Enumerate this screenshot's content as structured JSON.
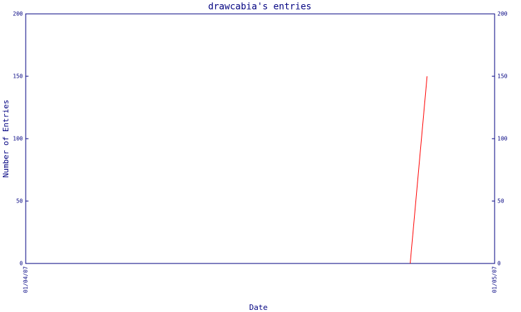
{
  "chart_data": {
    "type": "line",
    "title": "drawcabia's entries",
    "xlabel": "Date",
    "ylabel": "Number of Entries",
    "x": [
      0.82,
      0.856
    ],
    "values": [
      0,
      150
    ],
    "color": "#ff0000",
    "xlim": [
      0,
      1
    ],
    "xticks": [
      {
        "value": 0,
        "label": "01/04/07"
      },
      {
        "value": 1,
        "label": "01/05/07"
      }
    ],
    "ylim": [
      0,
      200
    ],
    "yticks": [
      0,
      50,
      100,
      150,
      200
    ],
    "y2lim": [
      0,
      200
    ],
    "y2ticks": [
      0,
      50,
      100,
      150,
      200
    ],
    "axis_color": "#000080"
  }
}
